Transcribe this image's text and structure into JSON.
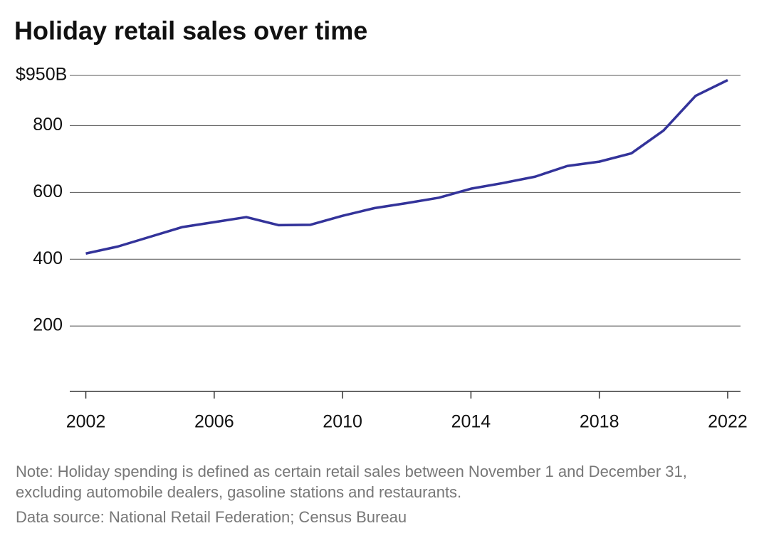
{
  "chart_data": {
    "type": "line",
    "title": "Holiday retail sales over time",
    "x": [
      2002,
      2003,
      2004,
      2005,
      2006,
      2007,
      2008,
      2009,
      2010,
      2011,
      2012,
      2013,
      2014,
      2015,
      2016,
      2017,
      2018,
      2019,
      2020,
      2021,
      2022
    ],
    "series": [
      {
        "name": "Holiday retail sales",
        "color": "#33339a",
        "values": [
          417,
          438,
          467,
          496,
          511,
          526,
          502,
          503,
          530,
          553,
          568,
          584,
          611,
          628,
          647,
          679,
          692,
          717,
          785,
          889,
          936
        ]
      }
    ],
    "xlim": [
      2001.5,
      2022.4
    ],
    "xticks": [
      2002,
      2006,
      2010,
      2014,
      2018,
      2022
    ],
    "ylim": [
      0,
      950
    ],
    "yticks": [
      200,
      400,
      600,
      800,
      {
        "value": 950,
        "label": "$950B"
      }
    ],
    "grid": true,
    "note": "Note: Holiday spending is defined as certain retail sales between November 1 and December 31, excluding automobile dealers, gasoline stations and restaurants.",
    "source": "Data source: National Retail Federation; Census Bureau"
  }
}
